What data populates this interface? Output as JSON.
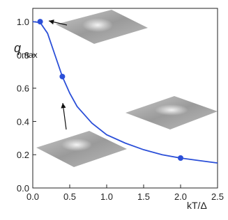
{
  "chart_data": {
    "type": "line",
    "x_label": "kT/Δ",
    "y_label": {
      "main": "q",
      "sub": "max"
    },
    "xlim": [
      0,
      2.5
    ],
    "ylim": [
      0,
      1.08
    ],
    "xticks": [
      {
        "value": 0,
        "label": "0.0"
      },
      {
        "value": 0.5,
        "label": "0.5"
      },
      {
        "value": 1,
        "label": "1.0"
      },
      {
        "value": 1.5,
        "label": "1.5"
      },
      {
        "value": 2,
        "label": "2.0"
      },
      {
        "value": 2.5,
        "label": "2.5"
      }
    ],
    "yticks": [
      {
        "value": 0,
        "label": "0.0"
      },
      0.2,
      0.4,
      0.6,
      0.8,
      {
        "value": 1,
        "label": "1.0"
      }
    ],
    "series": [
      {
        "color": "#2b4fd8",
        "markers": false,
        "x": [
          0,
          0.1,
          0.2,
          0.3,
          0.4,
          0.5,
          0.6,
          0.8,
          1.0,
          1.25,
          1.5,
          1.75,
          2.0,
          2.25,
          2.5
        ],
        "values": [
          1.0,
          0.995,
          0.93,
          0.8,
          0.67,
          0.57,
          0.49,
          0.39,
          0.32,
          0.27,
          0.23,
          0.2,
          0.18,
          0.165,
          0.15
        ]
      },
      {
        "color": "#2b4fd8",
        "markers": true,
        "x": [
          0.1,
          0.4,
          2.0
        ],
        "values": [
          1.0,
          0.67,
          0.18
        ]
      }
    ]
  }
}
